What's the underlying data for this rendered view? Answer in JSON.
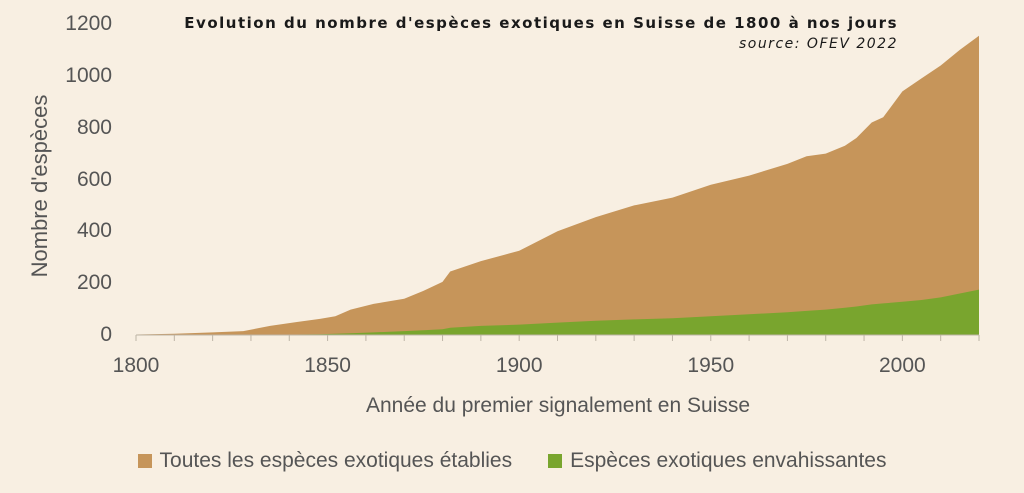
{
  "chart_data": {
    "type": "area",
    "title": "Evolution du nombre d'espèces exotiques en Suisse de 1800 à nos jours",
    "subtitle": "source: OFEV 2022",
    "xlabel": "Année du premier signalement en Suisse",
    "ylabel": "Nombre d'espèces",
    "xlim": [
      1800,
      2020
    ],
    "ylim": [
      0,
      1200
    ],
    "x_ticks": [
      "1800",
      "1850",
      "1900",
      "1950",
      "2000"
    ],
    "y_ticks": [
      "0",
      "200",
      "400",
      "600",
      "800",
      "1000",
      "1200"
    ],
    "grid": false,
    "legend_position": "bottom",
    "x": [
      1800,
      1810,
      1820,
      1828,
      1835,
      1842,
      1848,
      1852,
      1856,
      1862,
      1870,
      1875,
      1880,
      1882,
      1890,
      1900,
      1910,
      1920,
      1930,
      1940,
      1950,
      1960,
      1970,
      1975,
      1980,
      1985,
      1988,
      1992,
      1995,
      2000,
      2005,
      2010,
      2015,
      2020
    ],
    "series": [
      {
        "name": "Toutes les espèces exotiques établies",
        "color": "#c6955a",
        "values": [
          2,
          5,
          10,
          15,
          35,
          50,
          62,
          72,
          98,
          120,
          140,
          170,
          205,
          245,
          285,
          325,
          400,
          455,
          500,
          530,
          580,
          615,
          660,
          690,
          700,
          730,
          760,
          820,
          840,
          940,
          990,
          1040,
          1100,
          1155
        ]
      },
      {
        "name": "Espèces exotiques envahissantes",
        "color": "#79a52e",
        "values": [
          0,
          0,
          0,
          0,
          1,
          2,
          3,
          5,
          7,
          10,
          15,
          18,
          22,
          28,
          35,
          40,
          48,
          55,
          60,
          65,
          72,
          80,
          88,
          93,
          98,
          105,
          110,
          118,
          122,
          128,
          135,
          145,
          160,
          175
        ]
      }
    ]
  }
}
